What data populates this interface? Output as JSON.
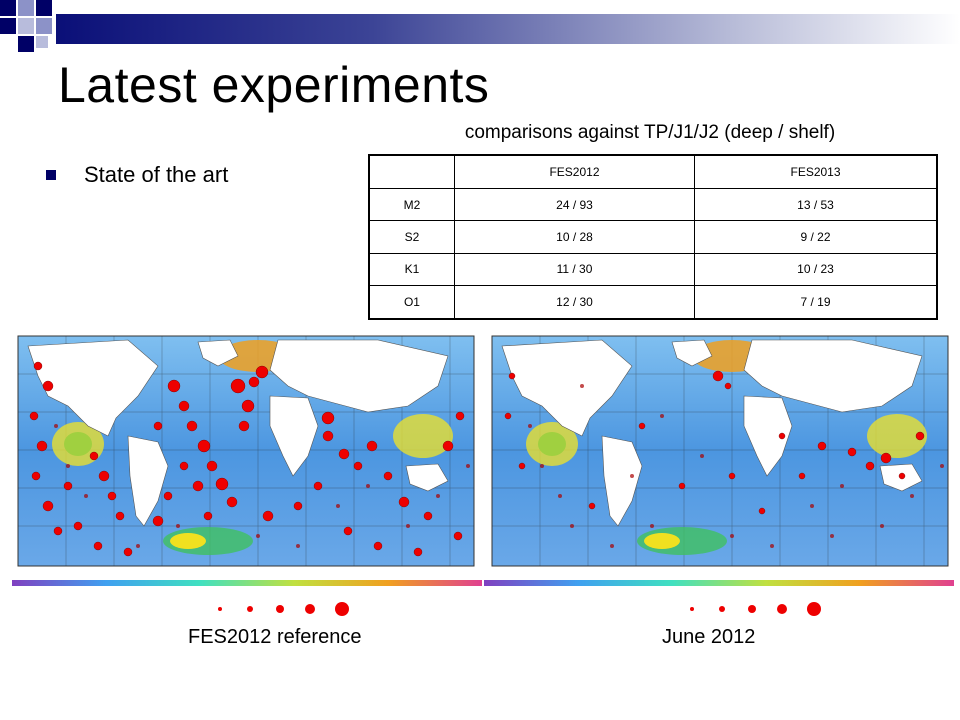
{
  "slide": {
    "title": "Latest experiments",
    "bullet": "State of the art",
    "table_caption": "comparisons against TP/J1/J2 (deep / shelf)",
    "table": {
      "headers": [
        "",
        "FES2012",
        "FES2013"
      ],
      "rows": [
        [
          "M2",
          "24 / 93",
          "13 / 53"
        ],
        [
          "S2",
          "10 / 28",
          "9 / 22"
        ],
        [
          "K1",
          "11 / 30",
          "10 / 23"
        ],
        [
          "O1",
          "12 / 30",
          "7 / 19"
        ]
      ]
    },
    "left_map_caption": "FES2012 reference",
    "right_map_caption": "June 2012"
  },
  "colors": {
    "accent_dark": "#000066",
    "accent_light": "#8c92c8",
    "marker": "#ee0000",
    "ocean": "#5aa0e6"
  },
  "icons": [
    "bullet-square-icon",
    "corner-squares-icon"
  ]
}
